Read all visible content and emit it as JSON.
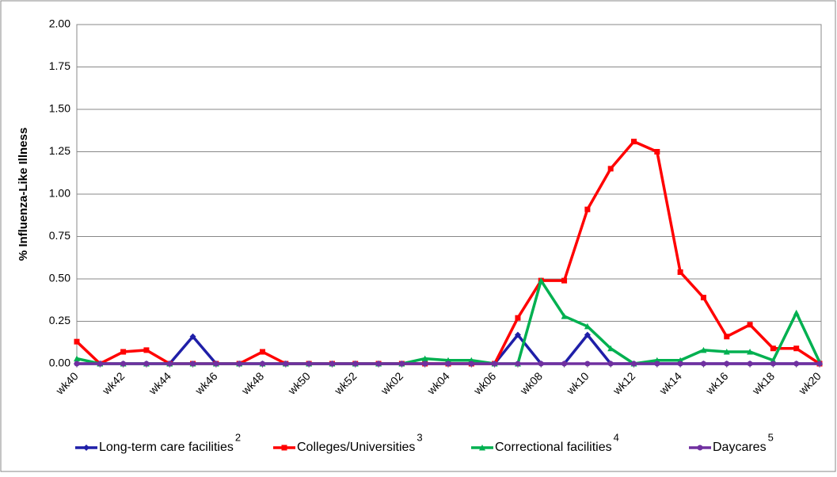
{
  "chart_data": {
    "type": "line",
    "y_label": "% Influenza-Like Illness",
    "categories": [
      "wk40",
      null,
      "wk42",
      null,
      "wk44",
      null,
      "wk46",
      null,
      "wk48",
      null,
      "wk50",
      null,
      "wk52",
      null,
      "wk02",
      null,
      "wk04",
      null,
      "wk06",
      null,
      "wk08",
      null,
      "wk10",
      null,
      "wk12",
      null,
      "wk14",
      null,
      "wk16",
      null,
      "wk18",
      null,
      "wk20"
    ],
    "ylim": [
      0,
      2
    ],
    "yticks": [
      {
        "value": 0,
        "label": "0.00"
      },
      {
        "value": 0.25,
        "label": "0.25"
      },
      {
        "value": 0.5,
        "label": "0.50"
      },
      {
        "value": 0.75,
        "label": "0.75"
      },
      {
        "value": 1,
        "label": "1.00"
      },
      {
        "value": 1.25,
        "label": "1.25"
      },
      {
        "value": 1.5,
        "label": "1.50"
      },
      {
        "value": 1.75,
        "label": "1.75"
      },
      {
        "value": 2,
        "label": "2.00"
      }
    ],
    "grid": true,
    "series": [
      {
        "name": "Long-term care facilities",
        "superscript": "2",
        "color": "#1f1fa8",
        "marker": "diamond",
        "values": [
          0,
          0,
          0,
          0,
          0,
          0.16,
          0,
          0,
          0,
          0,
          0,
          0,
          0,
          0,
          0,
          0,
          0,
          0,
          0,
          0.17,
          0,
          0,
          0.17,
          0,
          0,
          0,
          0,
          0,
          0,
          0,
          0,
          0,
          0
        ]
      },
      {
        "name": "Colleges/Universities",
        "superscript": "3",
        "color": "#ff0000",
        "marker": "square",
        "values": [
          0.13,
          0,
          0.07,
          0.08,
          0,
          0,
          0,
          0,
          0.07,
          0,
          0,
          0,
          0,
          0,
          0,
          0,
          0,
          0,
          0,
          0.27,
          0.49,
          0.49,
          0.91,
          1.15,
          1.31,
          1.25,
          0.54,
          0.39,
          0.16,
          0.23,
          0.09,
          0.09,
          0
        ]
      },
      {
        "name": "Correctional facilities",
        "superscript": "4",
        "color": "#00b050",
        "marker": "triangle",
        "values": [
          0.03,
          0,
          0,
          0,
          0,
          0,
          0,
          0,
          0,
          0,
          0,
          0,
          0,
          0,
          0,
          0.03,
          0.02,
          0.02,
          0,
          0,
          0.49,
          0.28,
          0.22,
          0.09,
          0,
          0.02,
          0.02,
          0.08,
          0.07,
          0.07,
          0.02,
          0.3,
          0.01
        ]
      },
      {
        "name": "Daycares",
        "superscript": "5",
        "color": "#7030a0",
        "marker": "circle",
        "values": [
          0,
          0,
          0,
          0,
          0,
          0,
          0,
          0,
          0,
          0,
          0,
          0,
          0,
          0,
          0,
          0,
          0,
          0,
          0,
          0,
          0,
          0,
          0,
          0,
          0,
          0,
          0,
          0,
          0,
          0,
          0,
          0,
          0
        ]
      }
    ]
  }
}
